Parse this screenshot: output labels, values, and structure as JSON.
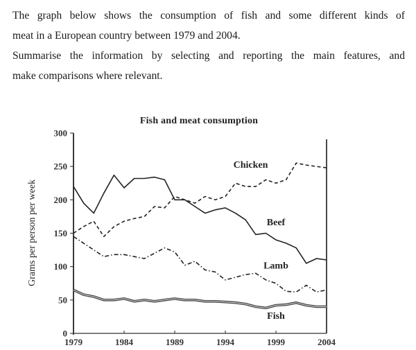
{
  "prompt": {
    "line1": "The graph below shows the consumption of fish and some different kinds of",
    "line2": "meat in a European country between 1979 and 2004.",
    "line3": "Summarise the information by selecting and reporting the main features, and",
    "line4": "make comparisons where relevant."
  },
  "chart_data": {
    "type": "line",
    "title": "Fish and meat consumption",
    "xlabel": "",
    "ylabel": "Grams per person per week",
    "xlim": [
      1979,
      2004
    ],
    "ylim": [
      0,
      300
    ],
    "x_ticks": [
      "1979",
      "1984",
      "1989",
      "1994",
      "1999",
      "2004"
    ],
    "y_ticks": [
      "0",
      "50",
      "100",
      "150",
      "200",
      "250",
      "300"
    ],
    "grid": false,
    "legend_position": "inline labels",
    "x": [
      1979,
      1980,
      1981,
      1982,
      1983,
      1984,
      1985,
      1986,
      1987,
      1988,
      1989,
      1990,
      1991,
      1992,
      1993,
      1994,
      1995,
      1996,
      1997,
      1998,
      1999,
      2000,
      2001,
      2002,
      2003,
      2004
    ],
    "series": [
      {
        "name": "Beef",
        "style": "solid",
        "values": [
          220,
          195,
          180,
          210,
          237,
          218,
          232,
          232,
          234,
          230,
          200,
          200,
          190,
          180,
          185,
          188,
          180,
          170,
          148,
          150,
          140,
          135,
          128,
          105,
          112,
          110
        ]
      },
      {
        "name": "Chicken",
        "style": "dashed",
        "values": [
          150,
          160,
          168,
          145,
          160,
          168,
          172,
          175,
          190,
          188,
          205,
          200,
          195,
          205,
          200,
          205,
          225,
          220,
          220,
          230,
          225,
          230,
          255,
          252,
          250,
          248
        ]
      },
      {
        "name": "Lamb",
        "style": "dash-dot",
        "values": [
          145,
          135,
          125,
          115,
          118,
          118,
          115,
          112,
          120,
          128,
          122,
          102,
          108,
          95,
          92,
          80,
          84,
          88,
          90,
          80,
          75,
          63,
          62,
          72,
          62,
          65
        ]
      },
      {
        "name": "Fish",
        "style": "double",
        "values": [
          65,
          58,
          55,
          50,
          50,
          52,
          48,
          50,
          48,
          50,
          52,
          50,
          50,
          48,
          48,
          47,
          46,
          44,
          40,
          38,
          42,
          43,
          46,
          42,
          40,
          40
        ]
      }
    ],
    "annotations": [
      {
        "text": "Chicken",
        "x": 1996.5,
        "y": 248
      },
      {
        "text": "Beef",
        "x": 1999,
        "y": 162
      },
      {
        "text": "Lamb",
        "x": 1999,
        "y": 97
      },
      {
        "text": "Fish",
        "x": 1999,
        "y": 22
      }
    ]
  }
}
